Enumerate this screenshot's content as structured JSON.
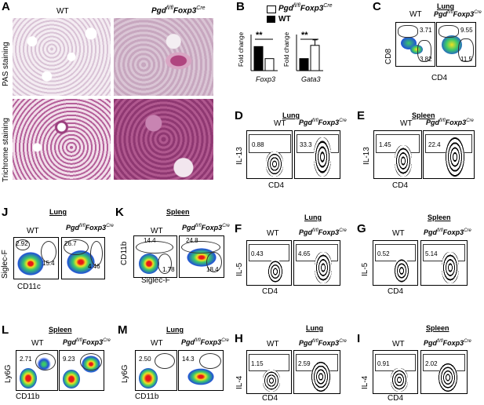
{
  "panels": {
    "A": {
      "letter": "A",
      "wt": "WT",
      "ko_main": "Pgd",
      "ko_sup": "fl/fl",
      "ko_main2": "Foxp3",
      "ko_sup2": "Cre",
      "row1": "PAS staining",
      "row2": "Trichrome staining"
    },
    "B": {
      "letter": "B",
      "legend_ko_main": "Pgd",
      "legend_ko_sup": "fl/fl",
      "legend_ko_main2": "Foxp3",
      "legend_ko_sup2": "Cre",
      "legend_wt": "WT",
      "ylabel": "Fold change",
      "sig": "**"
    },
    "C": {
      "letter": "C",
      "tissue": "Lung",
      "wt": "WT",
      "ylabel": "CD8",
      "xlabel": "CD4",
      "wt_vals": [
        "3.71",
        "3.82"
      ],
      "ko_vals": [
        "9.55",
        "11.5"
      ]
    },
    "D": {
      "letter": "D",
      "tissue": "Lung",
      "wt": "WT",
      "ylabel": "IL-13",
      "xlabel": "CD4",
      "wt_val": "0.88",
      "ko_val": "33.3"
    },
    "E": {
      "letter": "E",
      "tissue": "Spleen",
      "wt": "WT",
      "ylabel": "IL-13",
      "xlabel": "CD4",
      "wt_val": "1.45",
      "ko_val": "22.4"
    },
    "J": {
      "letter": "J",
      "tissue": "Lung",
      "wt": "WT",
      "ylabel": "Siglec-F",
      "xlabel": "CD11c",
      "wt_vals": [
        "2.92",
        "15.4"
      ],
      "ko_vals": [
        "26.7",
        "4.46"
      ]
    },
    "K": {
      "letter": "K",
      "tissue": "Spleen",
      "wt": "WT",
      "ylabel": "CD11b",
      "xlabel": "Siglec-F",
      "wt_vals": [
        "14.4",
        "1.78"
      ],
      "ko_vals": [
        "24.8",
        "18.4"
      ]
    },
    "F": {
      "letter": "F",
      "tissue": "Lung",
      "wt": "WT",
      "ylabel": "IL-5",
      "xlabel": "CD4",
      "wt_val": "0.43",
      "ko_val": "4.65"
    },
    "G": {
      "letter": "G",
      "tissue": "Spleen",
      "wt": "WT",
      "ylabel": "IL-5",
      "xlabel": "CD4",
      "wt_val": "0.52",
      "ko_val": "5.14"
    },
    "L": {
      "letter": "L",
      "tissue": "Spleen",
      "wt": "WT",
      "ylabel": "Ly6G",
      "xlabel": "CD11b",
      "wt_val": "2.71",
      "ko_val": "9.23"
    },
    "M": {
      "letter": "M",
      "tissue": "Lung",
      "wt": "WT",
      "ylabel": "Ly6G",
      "xlabel": "CD11b",
      "wt_val": "2.50",
      "ko_val": "14.3"
    },
    "H": {
      "letter": "H",
      "tissue": "Lung",
      "wt": "WT",
      "ylabel": "IL-4",
      "xlabel": "CD4",
      "wt_val": "1.15",
      "ko_val": "2.59"
    },
    "I": {
      "letter": "I",
      "tissue": "Spleen",
      "wt": "WT",
      "ylabel": "IL-4",
      "xlabel": "CD4",
      "wt_val": "0.91",
      "ko_val": "2.02"
    }
  },
  "chart_data": [
    {
      "type": "bar",
      "categories": [
        "Foxp3"
      ],
      "series": [
        {
          "name": "WT",
          "values": [
            1.0
          ]
        },
        {
          "name": "Pgd fl/fl Foxp3 Cre",
          "values": [
            0.5
          ]
        }
      ],
      "xlabel": "Foxp3",
      "ylabel": "Fold change",
      "annotation": "**"
    },
    {
      "type": "bar",
      "categories": [
        "Gata3"
      ],
      "series": [
        {
          "name": "WT",
          "values": [
            1.0
          ]
        },
        {
          "name": "Pgd fl/fl Foxp3 Cre",
          "values": [
            2.1
          ]
        }
      ],
      "xlabel": "Gata3",
      "ylabel": "Fold change",
      "annotation": "**"
    }
  ],
  "colors": {
    "pas_wt": "#e8d8e3",
    "pas_ko": "#c9a9c2",
    "tri_wt": "#c48ab2",
    "tri_ko": "#a04e86",
    "flow_blue": "#1f4fd8",
    "flow_green": "#3cc86a",
    "flow_red": "#e81818"
  }
}
